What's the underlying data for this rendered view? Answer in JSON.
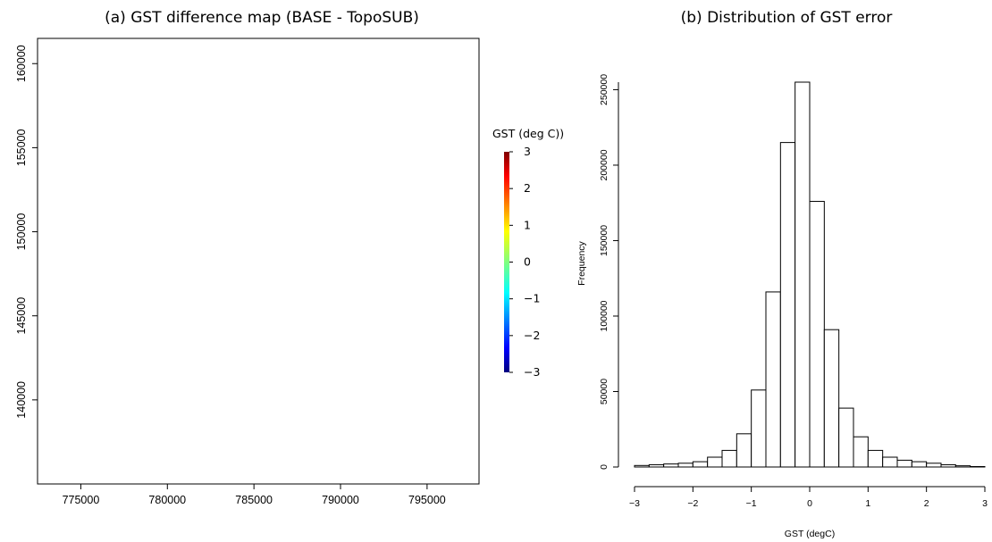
{
  "chart_data": [
    {
      "type": "heatmap",
      "title": "(a) GST difference map (BASE - TopoSUB)",
      "xlabel": "",
      "ylabel": "",
      "xlim": [
        772500,
        798000
      ],
      "ylim": [
        135000,
        161500
      ],
      "xticks": [
        775000,
        780000,
        785000,
        790000,
        795000
      ],
      "xtick_labels": [
        "775000",
        "780000",
        "785000",
        "790000",
        "795000"
      ],
      "yticks": [
        140000,
        145000,
        150000,
        155000,
        160000
      ],
      "ytick_labels": [
        "140000",
        "145000",
        "150000",
        "155000",
        "160000"
      ],
      "legend": {
        "title": "GST (deg C))",
        "min": -3,
        "max": 3,
        "ticks": [
          3,
          2,
          1,
          0,
          -1,
          -2,
          -3
        ],
        "tick_labels": [
          "3",
          "2",
          "1",
          "0",
          "−1",
          "−2",
          "−3"
        ],
        "colors": [
          "#00007f",
          "#0000ff",
          "#007fff",
          "#00ffff",
          "#7fff7f",
          "#ffff00",
          "#ff7f00",
          "#ff0000",
          "#7f0000"
        ]
      }
    },
    {
      "type": "bar",
      "title": "(b) Distribution of GST error",
      "xlabel": "GST (degC)",
      "ylabel": "Frequency",
      "bin_edges": [
        -3.0,
        -2.75,
        -2.5,
        -2.25,
        -2.0,
        -1.75,
        -1.5,
        -1.25,
        -1.0,
        -0.75,
        -0.5,
        -0.25,
        0.0,
        0.25,
        0.5,
        0.75,
        1.0,
        1.25,
        1.5,
        1.75,
        2.0,
        2.25,
        2.5,
        2.75,
        3.0
      ],
      "values": [
        1000,
        1500,
        2000,
        2500,
        3500,
        6500,
        11000,
        22000,
        51000,
        116000,
        215000,
        255000,
        176000,
        91000,
        39000,
        20000,
        11000,
        6500,
        4500,
        3500,
        2500,
        1500,
        800,
        300
      ],
      "xlim": [
        -3,
        3
      ],
      "ylim": [
        0,
        255000
      ],
      "xticks": [
        -3,
        -2,
        -1,
        0,
        1,
        2,
        3
      ],
      "xtick_labels": [
        "−3",
        "−2",
        "−1",
        "0",
        "1",
        "2",
        "3"
      ],
      "yticks": [
        0,
        50000,
        100000,
        150000,
        200000,
        250000
      ],
      "ytick_labels": [
        "0",
        "50000",
        "100000",
        "150000",
        "200000",
        "250000"
      ]
    }
  ]
}
